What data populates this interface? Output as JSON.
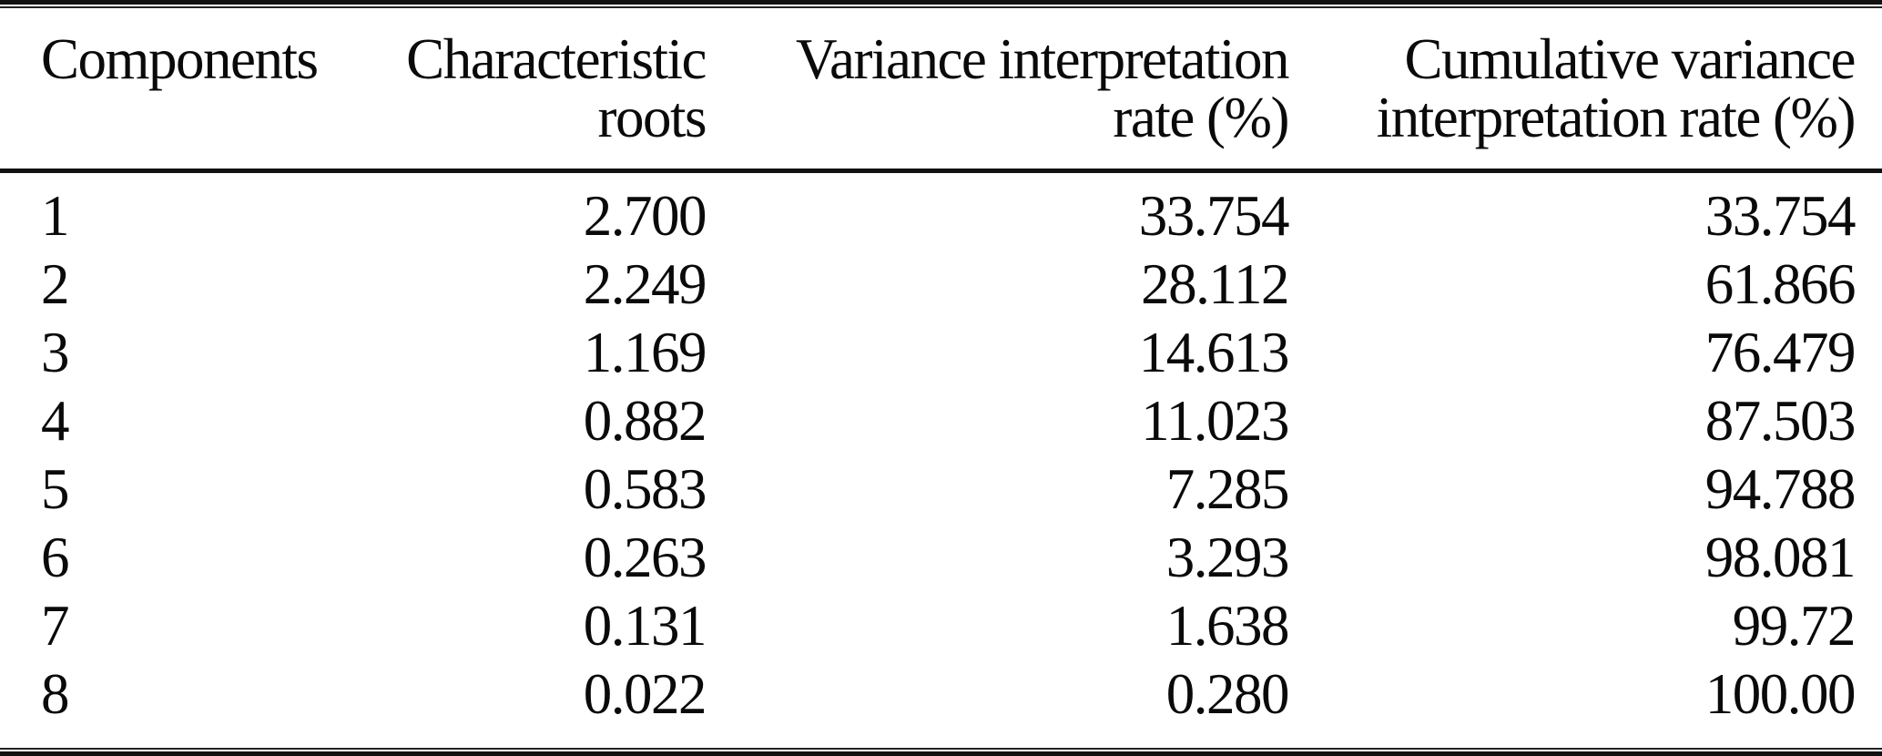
{
  "table": {
    "headers": [
      {
        "line1": "Components",
        "line2": ""
      },
      {
        "line1": "Characteristic",
        "line2": "roots"
      },
      {
        "line1": "Variance interpretation",
        "line2": "rate (%)"
      },
      {
        "line1": "Cumulative variance",
        "line2": "interpretation rate (%)"
      }
    ],
    "rows": [
      {
        "component": "1",
        "root": "2.700",
        "variance": "33.754",
        "cumulative": "33.754"
      },
      {
        "component": "2",
        "root": "2.249",
        "variance": "28.112",
        "cumulative": "61.866"
      },
      {
        "component": "3",
        "root": "1.169",
        "variance": "14.613",
        "cumulative": "76.479"
      },
      {
        "component": "4",
        "root": "0.882",
        "variance": "11.023",
        "cumulative": "87.503"
      },
      {
        "component": "5",
        "root": "0.583",
        "variance": "7.285",
        "cumulative": "94.788"
      },
      {
        "component": "6",
        "root": "0.263",
        "variance": "3.293",
        "cumulative": "98.081"
      },
      {
        "component": "7",
        "root": "0.131",
        "variance": "1.638",
        "cumulative": "99.72"
      },
      {
        "component": "8",
        "root": "0.022",
        "variance": "0.280",
        "cumulative": "100.00"
      }
    ]
  },
  "chart_data": {
    "type": "table",
    "title": "",
    "columns": [
      "Components",
      "Characteristic roots",
      "Variance interpretation rate (%)",
      "Cumulative variance interpretation rate (%)"
    ],
    "rows": [
      [
        1,
        2.7,
        33.754,
        33.754
      ],
      [
        2,
        2.249,
        28.112,
        61.866
      ],
      [
        3,
        1.169,
        14.613,
        76.479
      ],
      [
        4,
        0.882,
        11.023,
        87.503
      ],
      [
        5,
        0.583,
        7.285,
        94.788
      ],
      [
        6,
        0.263,
        3.293,
        98.081
      ],
      [
        7,
        0.131,
        1.638,
        99.72
      ],
      [
        8,
        0.022,
        0.28,
        100.0
      ]
    ]
  },
  "colors": {
    "background": "#ffffff",
    "text": "#0a0a0a",
    "rule": "#111111"
  }
}
